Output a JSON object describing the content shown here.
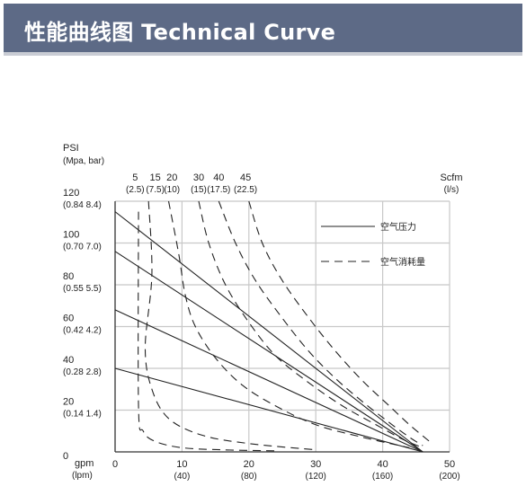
{
  "header": {
    "title": "性能曲线图 Technical Curve"
  },
  "chart_data": {
    "type": "line",
    "y_axis": {
      "title_line1": "PSI",
      "title_line2": "(Mpa, bar)",
      "ylim": [
        0,
        120
      ],
      "ticks": [
        {
          "value": 120,
          "main": "120",
          "sub": "(0.84 8.4)"
        },
        {
          "value": 100,
          "main": "100",
          "sub": "(0.70 7.0)"
        },
        {
          "value": 80,
          "main": "80",
          "sub": "(0.55 5.5)"
        },
        {
          "value": 60,
          "main": "60",
          "sub": "(0.42 4.2)"
        },
        {
          "value": 40,
          "main": "40",
          "sub": "(0.28 2.8)"
        },
        {
          "value": 20,
          "main": "20",
          "sub": "(0.14 1.4)"
        },
        {
          "value": 0,
          "main": "0",
          "sub": ""
        }
      ]
    },
    "x_axis": {
      "title_line1": "gpm",
      "title_line2": "(lpm)",
      "xlim": [
        0,
        50
      ],
      "ticks": [
        {
          "value": 0,
          "main": "0",
          "sub": ""
        },
        {
          "value": 10,
          "main": "10",
          "sub": "(40)"
        },
        {
          "value": 20,
          "main": "20",
          "sub": "(80)"
        },
        {
          "value": 30,
          "main": "30",
          "sub": "(120)"
        },
        {
          "value": 40,
          "main": "40",
          "sub": "(160)"
        },
        {
          "value": 50,
          "main": "50",
          "sub": "(200)"
        }
      ]
    },
    "top_axis": {
      "title_line1": "Scfm",
      "title_line2": "(l/s)",
      "ticks": [
        {
          "x": 3,
          "main": "5",
          "sub": "(2.5)"
        },
        {
          "x": 6,
          "main": "15",
          "sub": "(7.5)"
        },
        {
          "x": 8.5,
          "main": "20",
          "sub": "(10)"
        },
        {
          "x": 12.5,
          "main": "30",
          "sub": "(15)"
        },
        {
          "x": 15.5,
          "main": "40",
          "sub": "(17.5)"
        },
        {
          "x": 19.5,
          "main": "45",
          "sub": "(22.5)"
        }
      ]
    },
    "legend": {
      "position": "top-right",
      "items": [
        {
          "label": "空气压力",
          "style": "solid"
        },
        {
          "label": "空气消耗量",
          "style": "dashed"
        }
      ]
    },
    "grid": true,
    "series": [
      {
        "style": "solid",
        "points": [
          [
            0,
            115
          ],
          [
            46,
            0
          ]
        ]
      },
      {
        "style": "solid",
        "points": [
          [
            0,
            96
          ],
          [
            46,
            0
          ]
        ]
      },
      {
        "style": "solid",
        "points": [
          [
            0,
            68
          ],
          [
            46,
            0
          ]
        ]
      },
      {
        "style": "solid",
        "points": [
          [
            0,
            40
          ],
          [
            46,
            0
          ]
        ]
      },
      {
        "style": "dashed",
        "points": [
          [
            3.5,
            115
          ],
          [
            3.5,
            22
          ],
          [
            4.2,
            10
          ],
          [
            6,
            5
          ],
          [
            10,
            2
          ],
          [
            16,
            1
          ],
          [
            24,
            0.5
          ]
        ]
      },
      {
        "style": "dashed",
        "points": [
          [
            5,
            120
          ],
          [
            5.5,
            85
          ],
          [
            4.5,
            50
          ],
          [
            5.5,
            30
          ],
          [
            8,
            16
          ],
          [
            13,
            8
          ],
          [
            20,
            4
          ],
          [
            30,
            1
          ]
        ]
      },
      {
        "style": "dashed",
        "points": [
          [
            8,
            120
          ],
          [
            9.5,
            95
          ],
          [
            10.5,
            75
          ],
          [
            12,
            60
          ],
          [
            15,
            45
          ],
          [
            19,
            32
          ],
          [
            24,
            22
          ],
          [
            30,
            13
          ],
          [
            37,
            7
          ],
          [
            44,
            2
          ]
        ]
      },
      {
        "style": "dashed",
        "points": [
          [
            12.5,
            120
          ],
          [
            14,
            100
          ],
          [
            16.5,
            80
          ],
          [
            20,
            62
          ],
          [
            24,
            46
          ],
          [
            29,
            33
          ],
          [
            34,
            22
          ],
          [
            39,
            13
          ],
          [
            43,
            6
          ],
          [
            46,
            2
          ]
        ]
      },
      {
        "style": "dashed",
        "points": [
          [
            15.5,
            120
          ],
          [
            18,
            100
          ],
          [
            21,
            82
          ],
          [
            25,
            64
          ],
          [
            29,
            48
          ],
          [
            33,
            35
          ],
          [
            37,
            24
          ],
          [
            41,
            14
          ],
          [
            44,
            7
          ],
          [
            46,
            3
          ]
        ]
      },
      {
        "style": "dashed",
        "points": [
          [
            20,
            120
          ],
          [
            22,
            100
          ],
          [
            25,
            82
          ],
          [
            29,
            64
          ],
          [
            33,
            48
          ],
          [
            37,
            34
          ],
          [
            41,
            22
          ],
          [
            44,
            13
          ],
          [
            47,
            5
          ]
        ]
      }
    ]
  }
}
